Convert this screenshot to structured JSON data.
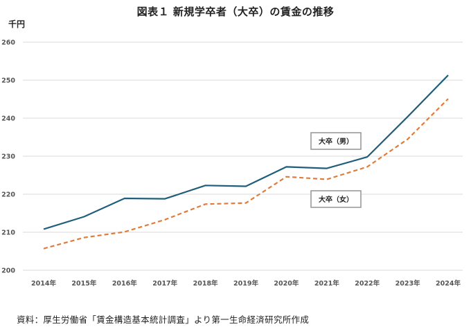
{
  "chart_data": {
    "type": "line",
    "title": "図表１ 新規学卒者（大卒）の賃金の推移",
    "ylabel": "千円",
    "ylim": [
      200,
      260
    ],
    "y_ticks": [
      200,
      210,
      220,
      230,
      240,
      250,
      260
    ],
    "categories": [
      "2014年",
      "2015年",
      "2016年",
      "2017年",
      "2018年",
      "2019年",
      "2020年",
      "2021年",
      "2022年",
      "2023年",
      "2024年"
    ],
    "grid": true,
    "series": [
      {
        "name": "大卒（男）",
        "color": "#1f5e7a",
        "style": "solid",
        "values": [
          210.8,
          214.1,
          218.9,
          218.8,
          222.3,
          222.1,
          227.2,
          226.8,
          229.8,
          240.4,
          251.3
        ]
      },
      {
        "name": "大卒（女）",
        "color": "#e07b39",
        "style": "dashed",
        "values": [
          205.7,
          208.6,
          210.1,
          213.3,
          217.4,
          217.7,
          224.6,
          223.9,
          227.2,
          234.5,
          245.1
        ]
      }
    ],
    "source": "資料：厚生労働省「賃金構造基本統計調査」より第一生命経済研究所作成"
  }
}
